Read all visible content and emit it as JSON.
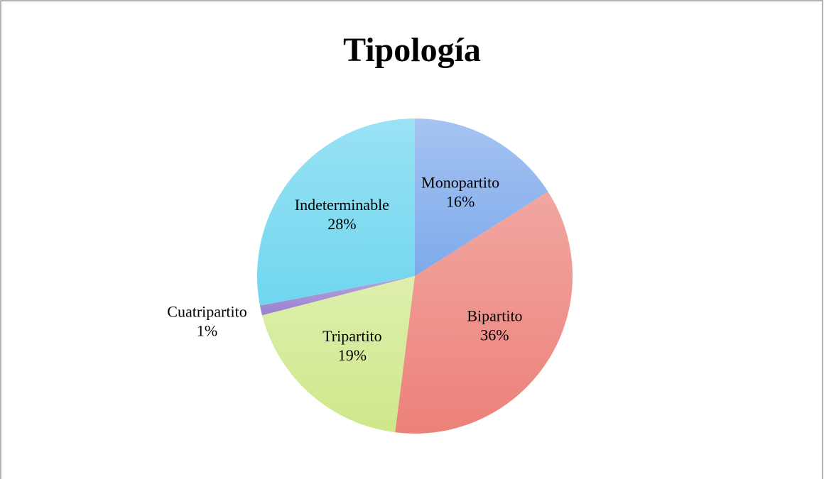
{
  "chart_data": {
    "type": "pie",
    "title": "Tipología",
    "categories": [
      "Monopartito",
      "Bipartito",
      "Tripartito",
      "Cuatripartito",
      "Indeterminable"
    ],
    "values": [
      16,
      36,
      19,
      1,
      28
    ],
    "value_labels": [
      "16%",
      "36%",
      "19%",
      "1%",
      "28%"
    ],
    "colors": [
      "#7eaaeb",
      "#ec8179",
      "#cfe88a",
      "#9a80d0",
      "#6fd6ef"
    ]
  }
}
